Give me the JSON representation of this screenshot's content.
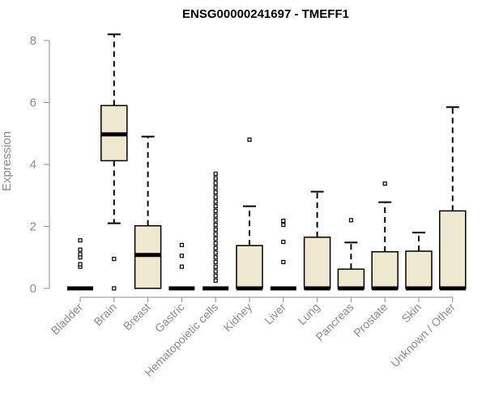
{
  "chart_data": {
    "type": "boxplot",
    "title": "ENSG00000241697 - TMEFF1",
    "xlabel": "",
    "ylabel": "Expression",
    "ylim": [
      0,
      8.2
    ],
    "yticks": [
      0,
      2,
      4,
      6,
      8
    ],
    "box_fill": "#efe8d0",
    "series_color": "#000000",
    "categories": [
      "Bladder",
      "Brain",
      "Breast",
      "Gastric",
      "Hematopoietic cells",
      "Kidney",
      "Liver",
      "Lung",
      "Pancreas",
      "Prostate",
      "Skin",
      "Unknown / Other"
    ],
    "boxes": [
      {
        "min": 0,
        "q1": 0,
        "median": 0,
        "q3": 0,
        "max": 0,
        "outliers": [
          0.7,
          0.78,
          1.0,
          1.1,
          1.25,
          1.55
        ]
      },
      {
        "min": 2.1,
        "q1": 4.12,
        "median": 4.97,
        "q3": 5.9,
        "max": 8.2,
        "outliers": [
          0.95,
          0.0
        ]
      },
      {
        "min": 0,
        "q1": 0,
        "median": 1.08,
        "q3": 2.02,
        "max": 4.9,
        "outliers": []
      },
      {
        "min": 0,
        "q1": 0,
        "median": 0,
        "q3": 0,
        "max": 0,
        "outliers": [
          0.7,
          1.05,
          1.4
        ]
      },
      {
        "min": 0,
        "q1": 0,
        "median": 0,
        "q3": 0,
        "max": 0,
        "outliers": [
          0.25,
          0.4,
          0.55,
          0.7,
          0.85,
          1.0,
          1.15,
          1.3,
          1.45,
          1.6,
          1.75,
          1.9,
          2.05,
          2.2,
          2.35,
          2.5,
          2.65,
          2.8,
          2.95,
          3.1,
          3.25,
          3.4,
          3.55,
          3.7
        ]
      },
      {
        "min": 0,
        "q1": 0,
        "median": 0,
        "q3": 1.38,
        "max": 2.65,
        "outliers": [
          4.8
        ]
      },
      {
        "min": 0,
        "q1": 0,
        "median": 0,
        "q3": 0,
        "max": 0,
        "outliers": [
          0.85,
          1.5,
          2.05,
          2.18
        ]
      },
      {
        "min": 0,
        "q1": 0,
        "median": 0,
        "q3": 1.65,
        "max": 3.12,
        "outliers": []
      },
      {
        "min": 0,
        "q1": 0,
        "median": 0,
        "q3": 0.62,
        "max": 1.48,
        "outliers": [
          2.2
        ]
      },
      {
        "min": 0,
        "q1": 0,
        "median": 0,
        "q3": 1.18,
        "max": 2.78,
        "outliers": [
          3.38
        ]
      },
      {
        "min": 0,
        "q1": 0,
        "median": 0,
        "q3": 1.2,
        "max": 1.8,
        "outliers": []
      },
      {
        "min": 0,
        "q1": 0,
        "median": 0,
        "q3": 2.5,
        "max": 5.85,
        "outliers": []
      }
    ]
  }
}
